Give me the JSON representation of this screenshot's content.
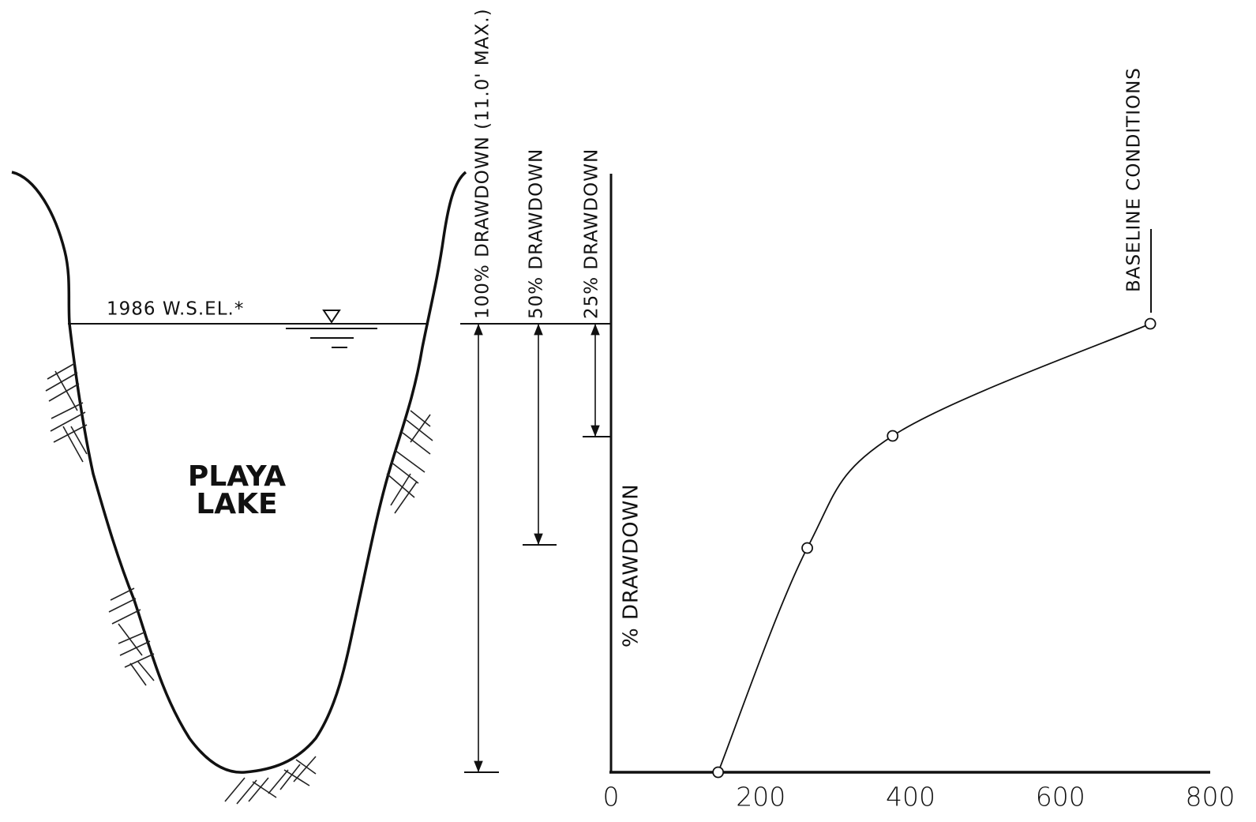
{
  "chart_data": {
    "type": "line",
    "x": [
      143,
      262,
      376,
      720
    ],
    "values": [
      100,
      50,
      25,
      0
    ],
    "color": "#111111",
    "xlim": [
      0,
      800
    ],
    "xticks": [
      0,
      200,
      400,
      600,
      800
    ],
    "ylim": [
      100,
      0
    ],
    "ylabel": "% DRAWDOWN",
    "annotation": "BASELINE CONDITIONS"
  },
  "lake": {
    "label_lines": [
      "PLAYA",
      "LAKE"
    ],
    "water_level": "1986 W.S.EL.*"
  },
  "drawdown_labels": [
    "100% DRAWDOWN (11.0' MAX.)",
    "50% DRAWDOWN",
    "25% DRAWDOWN"
  ]
}
